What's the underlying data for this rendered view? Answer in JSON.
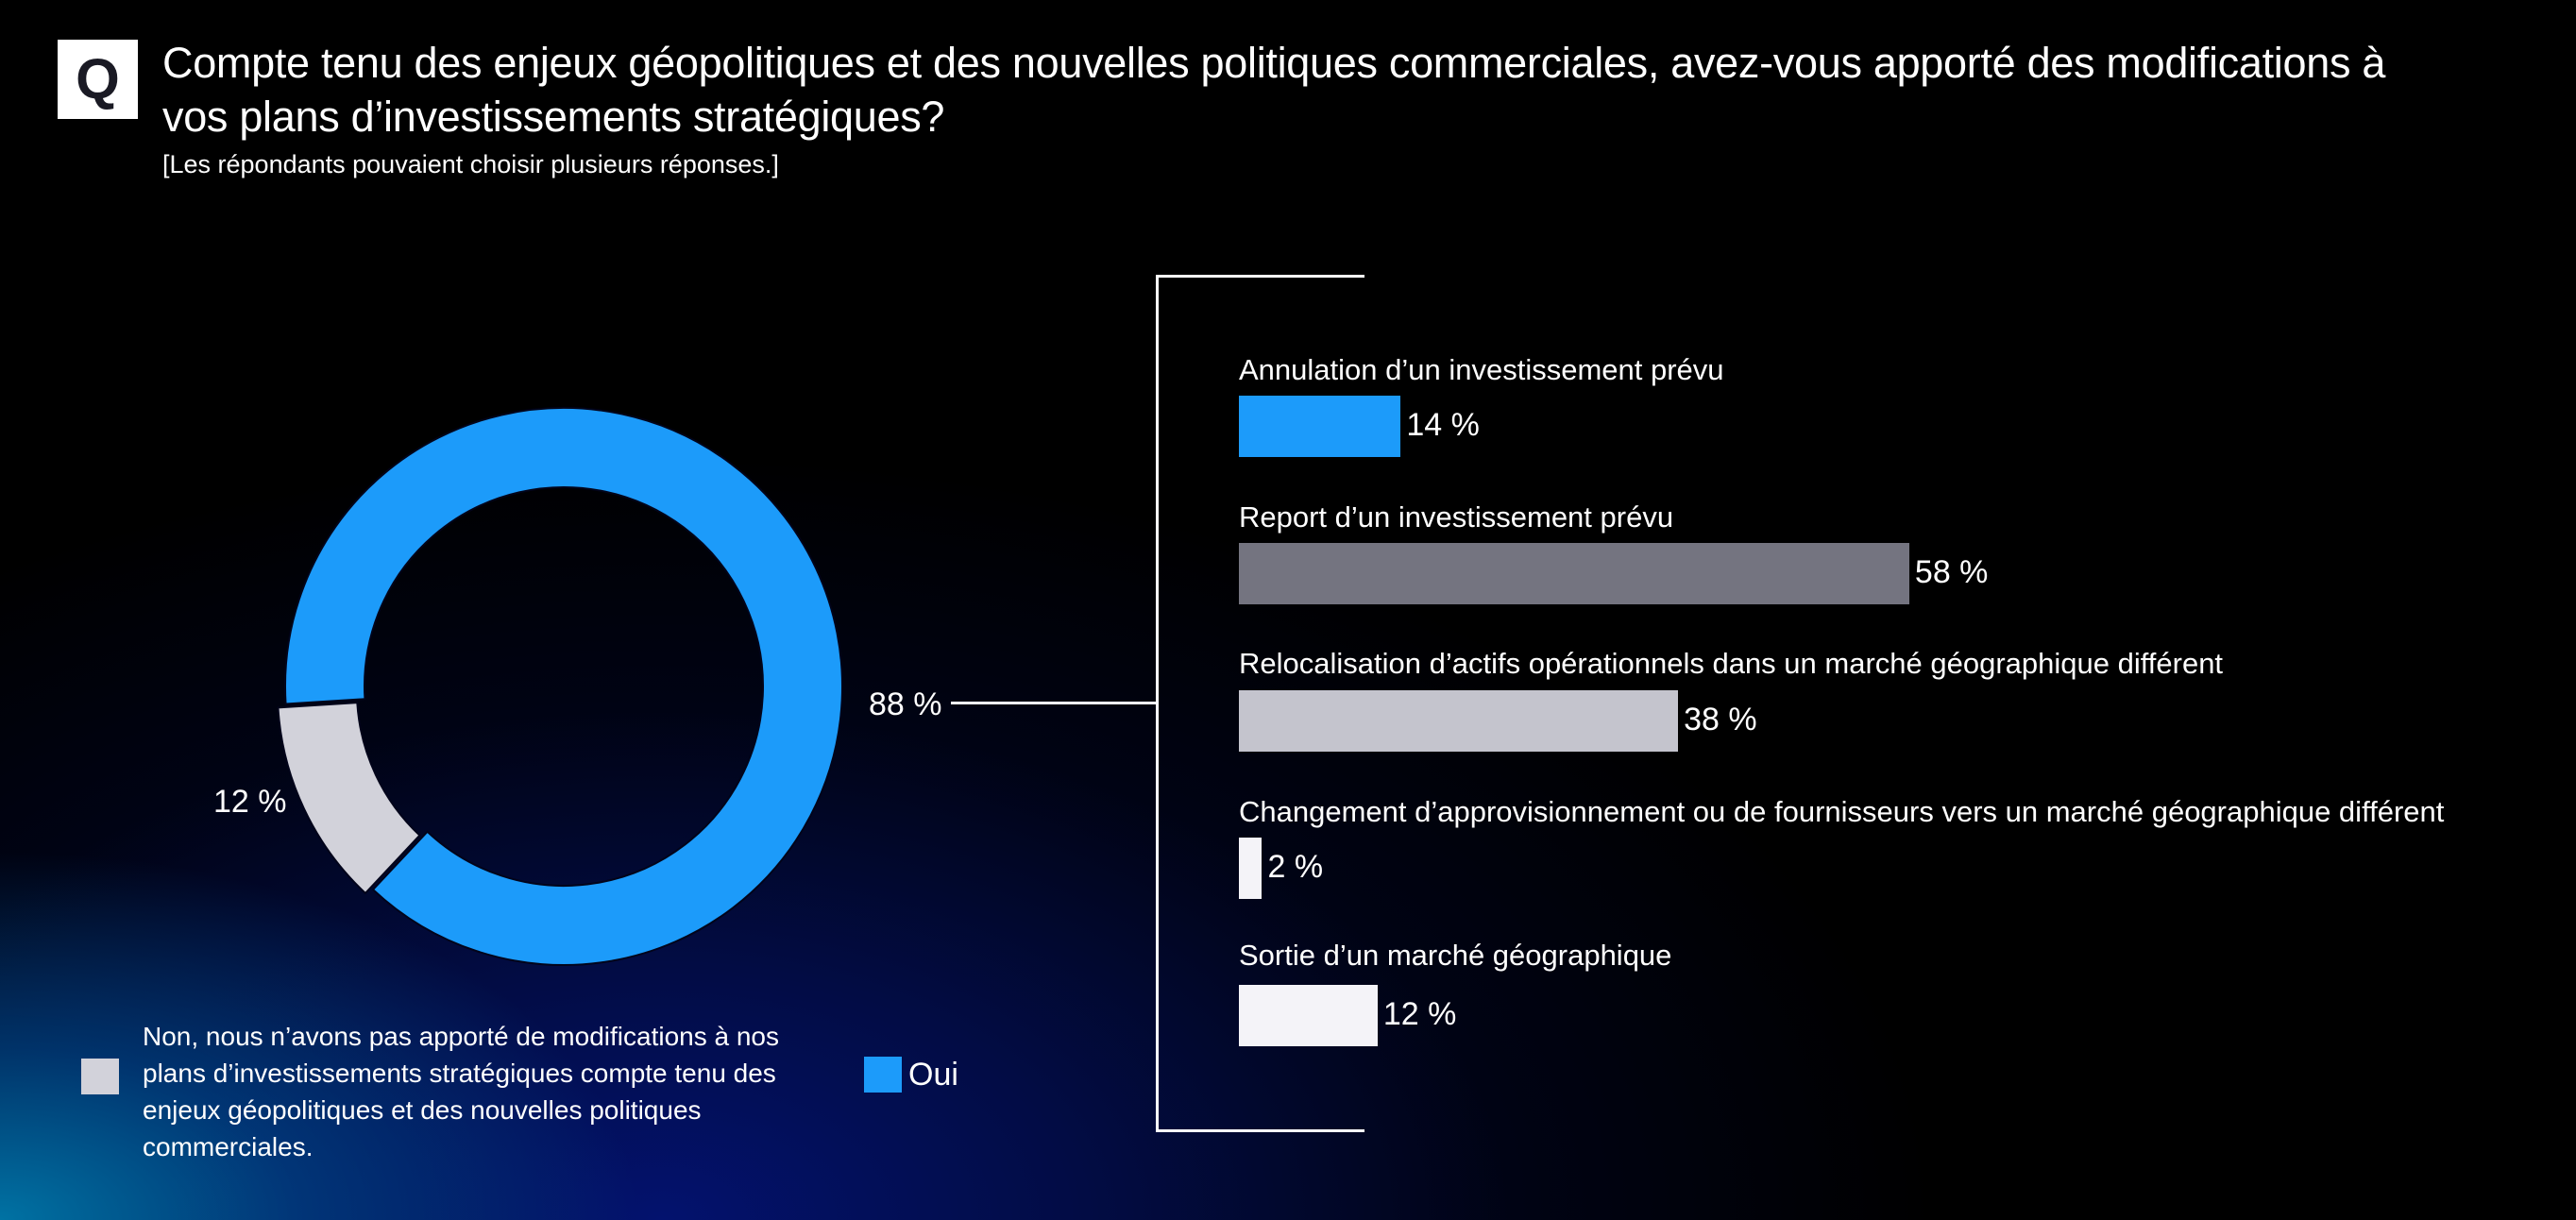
{
  "header": {
    "q_badge": "Q",
    "title": "Compte tenu des enjeux géopolitiques et des nouvelles politiques commerciales, avez-vous apporté des modifications à vos plans d’investissements stratégiques?",
    "subtitle": "[Les répondants pouvaient choisir plusieurs réponses.]"
  },
  "colors": {
    "oui": "#1C9BFA",
    "non": "#D2D2DA",
    "bar_1": "#1C9BFA",
    "bar_2": "#747480",
    "bar_3": "#C4C4CD",
    "bar_4": "#F4F3F8",
    "bar_5": "#F4F3F8"
  },
  "chart_data": [
    {
      "type": "pie",
      "variant": "donut",
      "title": "",
      "slices": [
        {
          "label": "Oui",
          "value": 88,
          "display": "88 %",
          "color": "#1C9BFA"
        },
        {
          "label": "Non, nous n’avons pas apporté de modifications à nos plans d’investissements stratégiques compte tenu des enjeux géopolitiques et des nouvelles politiques commerciales.",
          "value": 12,
          "display": "12 %",
          "color": "#D2D2DA",
          "exploded": true
        }
      ],
      "legend": [
        {
          "label": "Non, nous n’avons pas apporté de modifications à nos plans d’investissements stratégiques compte tenu des enjeux géopolitiques et des nouvelles politiques commerciales.",
          "color": "#D2D2DA"
        },
        {
          "label": "Oui",
          "color": "#1C9BFA"
        }
      ],
      "legend_position": "bottom-left"
    },
    {
      "type": "bar",
      "orientation": "horizontal",
      "title": "",
      "breakdown_of": "Oui",
      "categories": [
        "Annulation d’un investissement prévu",
        "Report d’un investissement prévu",
        "Relocalisation d’actifs opérationnels dans un marché géographique différent",
        "Changement d’approvisionnement ou de fournisseurs vers un marché géographique différent",
        "Sortie d’un marché géographique"
      ],
      "values": [
        14,
        58,
        38,
        2,
        12
      ],
      "value_labels": [
        "14 %",
        "58 %",
        "38 %",
        "2 %",
        "12 %"
      ],
      "unit": "%",
      "xlim": [
        0,
        100
      ],
      "grid": false
    }
  ]
}
